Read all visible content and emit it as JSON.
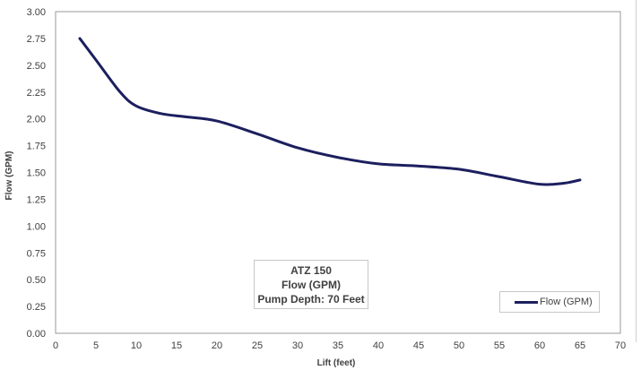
{
  "chart_data": {
    "type": "line",
    "xlabel": "Lift (feet)",
    "ylabel": "Flow (GPM)",
    "xlim": [
      0,
      70
    ],
    "ylim": [
      0,
      3
    ],
    "x_ticks": [
      "0",
      "5",
      "10",
      "15",
      "20",
      "25",
      "30",
      "35",
      "40",
      "45",
      "50",
      "55",
      "60",
      "65",
      "70"
    ],
    "y_ticks": [
      "0.00",
      "0.25",
      "0.50",
      "0.75",
      "1.00",
      "1.25",
      "1.50",
      "1.75",
      "2.00",
      "2.25",
      "2.50",
      "2.75",
      "3.00"
    ],
    "grid": "major and minor",
    "legend_position": "bottom-right",
    "annotation": [
      "ATZ 150",
      "Flow (GPM)",
      "Pump Depth: 70 Feet"
    ],
    "series": [
      {
        "name": "Flow (GPM)",
        "color": "#1c1f5e",
        "x": [
          3,
          5,
          8,
          10,
          13,
          16,
          20,
          25,
          30,
          35,
          40,
          45,
          50,
          55,
          60,
          63,
          65
        ],
        "y": [
          2.75,
          2.55,
          2.25,
          2.12,
          2.05,
          2.02,
          1.98,
          1.86,
          1.73,
          1.64,
          1.58,
          1.56,
          1.53,
          1.46,
          1.39,
          1.4,
          1.43
        ]
      }
    ]
  }
}
